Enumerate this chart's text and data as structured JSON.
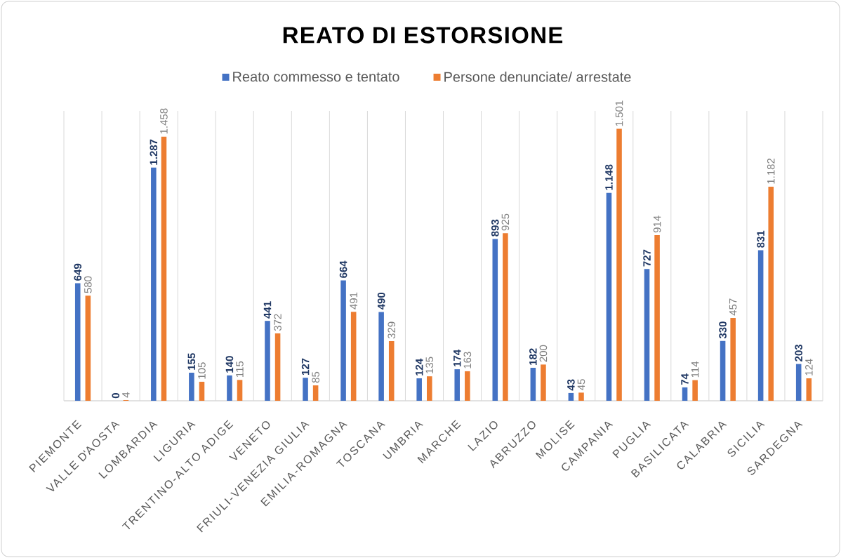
{
  "chart_data": {
    "type": "bar",
    "title": "REATO DI ESTORSIONE",
    "categories": [
      "PIEMONTE",
      "VALLE D'AOSTA",
      "LOMBARDIA",
      "LIGURIA",
      "TRENTINO-ALTO ADIGE",
      "VENETO",
      "FRIULI-VENEZIA GIULIA",
      "EMILIA-ROMAGNA",
      "TOSCANA",
      "UMBRIA",
      "MARCHE",
      "LAZIO",
      "ABRUZZO",
      "MOLISE",
      "CAMPANIA",
      "PUGLIA",
      "BASILICATA",
      "CALABRIA",
      "SICILIA",
      "SARDEGNA"
    ],
    "series": [
      {
        "name": "Reato commesso e tentato",
        "color": "#4472c4",
        "values": [
          649,
          0,
          1287,
          155,
          140,
          441,
          127,
          664,
          490,
          124,
          174,
          893,
          182,
          43,
          1148,
          727,
          74,
          330,
          831,
          203
        ],
        "value_labels": [
          "649",
          "0",
          "1.287",
          "155",
          "140",
          "441",
          "127",
          "664",
          "490",
          "124",
          "174",
          "893",
          "182",
          "43",
          "1.148",
          "727",
          "74",
          "330",
          "831",
          "203"
        ]
      },
      {
        "name": "Persone denunciate/ arrestate",
        "color": "#ed7d31",
        "values": [
          580,
          4,
          1458,
          105,
          115,
          372,
          85,
          491,
          329,
          135,
          163,
          925,
          200,
          45,
          1501,
          914,
          114,
          457,
          1182,
          124
        ],
        "value_labels": [
          "580",
          "4",
          "1.458",
          "105",
          "115",
          "372",
          "85",
          "491",
          "329",
          "135",
          "163",
          "925",
          "200",
          "45",
          "1.501",
          "914",
          "114",
          "457",
          "1.182",
          "124"
        ]
      }
    ],
    "ylim": [
      0,
      1600
    ],
    "grid": "x",
    "legend": "top",
    "tick_labels": "x"
  }
}
